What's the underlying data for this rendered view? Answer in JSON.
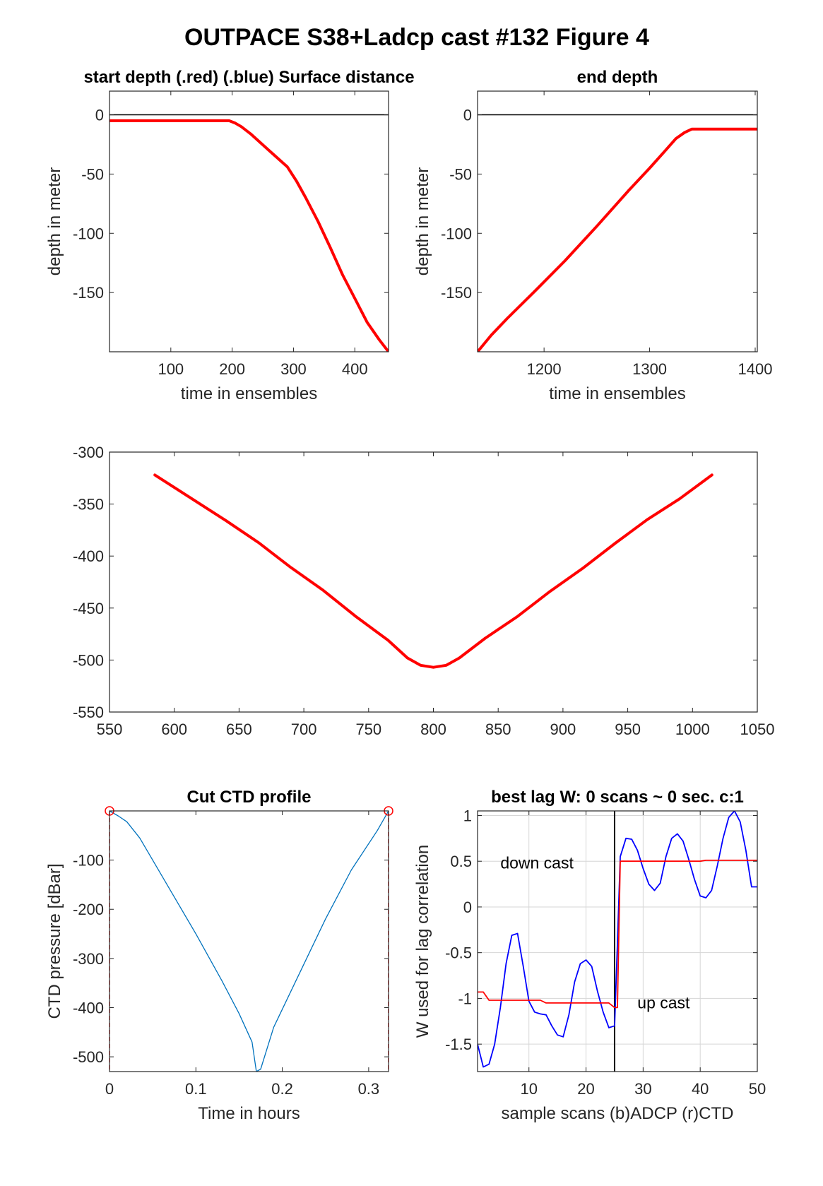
{
  "figure": {
    "title": "OUTPACE S38+Ladcp cast #132   Figure 4"
  },
  "chart_data": [
    {
      "id": "start",
      "type": "line",
      "title": "start depth (.red) (.blue) Surface distance",
      "xlabel": "time in ensembles",
      "ylabel": "depth in meter",
      "xlim": [
        0,
        455
      ],
      "ylim": [
        -200,
        20
      ],
      "xticks": [
        100,
        200,
        300,
        400
      ],
      "yticks": [
        0,
        -50,
        -100,
        -150
      ],
      "hlines": [
        0
      ],
      "grid": false,
      "series": [
        {
          "color": "#ff0000",
          "width": 4,
          "x": [
            0,
            100,
            195,
            205,
            215,
            230,
            260,
            290,
            305,
            320,
            340,
            360,
            380,
            400,
            420,
            440,
            455
          ],
          "y": [
            -5,
            -5,
            -5,
            -7,
            -10,
            -16,
            -30,
            -44,
            -56,
            -70,
            -90,
            -112,
            -135,
            -155,
            -175,
            -190,
            -200
          ]
        }
      ]
    },
    {
      "id": "end",
      "type": "line",
      "title": "end depth",
      "xlabel": "time in ensembles",
      "ylabel": "depth in meter",
      "xlim": [
        1137,
        1402
      ],
      "ylim": [
        -200,
        20
      ],
      "xticks": [
        1200,
        1300,
        1400
      ],
      "yticks": [
        0,
        -50,
        -100,
        -150
      ],
      "hlines": [
        0
      ],
      "grid": false,
      "series": [
        {
          "color": "#ff0000",
          "width": 4,
          "x": [
            1137,
            1150,
            1165,
            1190,
            1220,
            1250,
            1280,
            1300,
            1315,
            1325,
            1333,
            1340,
            1360,
            1402
          ],
          "y": [
            -200,
            -186,
            -172,
            -150,
            -123,
            -94,
            -64,
            -45,
            -30,
            -20,
            -15,
            -12,
            -12,
            -12
          ]
        }
      ]
    },
    {
      "id": "middle",
      "type": "line",
      "title": "",
      "xlabel": "",
      "ylabel": "",
      "xlim": [
        550,
        1050
      ],
      "ylim": [
        -550,
        -300
      ],
      "xticks": [
        550,
        600,
        650,
        700,
        750,
        800,
        850,
        900,
        950,
        1000,
        1050
      ],
      "yticks": [
        -300,
        -350,
        -400,
        -450,
        -500,
        -550
      ],
      "hlines": [],
      "grid": false,
      "series": [
        {
          "color": "#ff0000",
          "width": 4,
          "x": [
            585,
            610,
            640,
            665,
            690,
            715,
            740,
            765,
            780,
            790,
            800,
            810,
            820,
            840,
            865,
            890,
            915,
            940,
            965,
            990,
            1015
          ],
          "y": [
            -322,
            -342,
            -366,
            -387,
            -411,
            -433,
            -458,
            -481,
            -498,
            -505,
            -507,
            -505,
            -498,
            -479,
            -458,
            -434,
            -412,
            -388,
            -365,
            -345,
            -322
          ]
        }
      ]
    },
    {
      "id": "ctd",
      "type": "line",
      "title": "Cut CTD profile",
      "xlabel": "Time in hours",
      "ylabel": "CTD pressure [dBar]",
      "xlim": [
        0,
        0.323
      ],
      "ylim": [
        -530,
        0
      ],
      "xticks": [
        0,
        0.1,
        0.2,
        0.3
      ],
      "xticklabels": [
        "0",
        "0.1",
        "0.2",
        "0.3"
      ],
      "yticks": [
        -100,
        -200,
        -300,
        -400,
        -500
      ],
      "vlines_dashed": [
        0,
        0.323
      ],
      "markers": [
        {
          "x": 0,
          "y": 0
        },
        {
          "x": 0.323,
          "y": 0
        }
      ],
      "grid": false,
      "series": [
        {
          "color": "#0072bd",
          "width": 1.3,
          "x": [
            0,
            0.01,
            0.02,
            0.035,
            0.05,
            0.07,
            0.1,
            0.13,
            0.15,
            0.165,
            0.17,
            0.175,
            0.19,
            0.22,
            0.25,
            0.28,
            0.31,
            0.323
          ],
          "y": [
            0,
            -10,
            -22,
            -55,
            -100,
            -160,
            -250,
            -345,
            -412,
            -470,
            -530,
            -525,
            -440,
            -330,
            -220,
            -120,
            -40,
            0
          ]
        }
      ]
    },
    {
      "id": "lag",
      "type": "line",
      "title": "best lag W: 0 scans ~ 0 sec.  c:1",
      "xlabel": "sample scans (b)ADCP (r)CTD",
      "ylabel": "W used for lag correlation",
      "xlim": [
        1,
        50
      ],
      "ylim": [
        -1.8,
        1.05
      ],
      "xticks": [
        10,
        20,
        30,
        40,
        50
      ],
      "yticks": [
        1,
        0.5,
        0,
        -0.5,
        -1,
        -1.5
      ],
      "yticklabels": [
        "1",
        "0.5",
        "0",
        "-0.5",
        "-1",
        "-1.5"
      ],
      "grid": true,
      "vlines_solid": [
        25
      ],
      "annotations": [
        {
          "text": "down cast",
          "x": 5,
          "y": 0.42
        },
        {
          "text": "up cast",
          "x": 29,
          "y": -1.11
        }
      ],
      "series": [
        {
          "color": "#0000ff",
          "width": 1.8,
          "x": [
            1,
            2,
            3,
            4,
            5,
            6,
            7,
            8,
            9,
            10,
            11,
            12,
            13,
            14,
            15,
            16,
            17,
            18,
            19,
            20,
            21,
            22,
            23,
            24,
            25,
            25.5,
            26,
            27,
            28,
            29,
            30,
            31,
            32,
            33,
            34,
            35,
            36,
            37,
            38,
            39,
            40,
            41,
            42,
            43,
            44,
            45,
            46,
            47,
            48,
            49,
            50
          ],
          "y": [
            -1.5,
            -1.75,
            -1.72,
            -1.5,
            -1.1,
            -0.62,
            -0.31,
            -0.29,
            -0.65,
            -1.03,
            -1.15,
            -1.17,
            -1.18,
            -1.3,
            -1.4,
            -1.42,
            -1.18,
            -0.82,
            -0.62,
            -0.58,
            -0.65,
            -0.92,
            -1.15,
            -1.32,
            -1.3,
            -0.4,
            0.55,
            0.75,
            0.74,
            0.62,
            0.42,
            0.25,
            0.18,
            0.26,
            0.55,
            0.75,
            0.8,
            0.72,
            0.52,
            0.3,
            0.12,
            0.1,
            0.18,
            0.45,
            0.75,
            0.98,
            1.05,
            0.93,
            0.62,
            0.22,
            0.22
          ]
        },
        {
          "color": "#ff0000",
          "width": 1.8,
          "x": [
            1,
            2,
            3,
            4,
            12,
            13,
            24,
            25,
            25.5,
            26,
            40,
            41,
            50
          ],
          "y": [
            -0.93,
            -0.93,
            -1.02,
            -1.02,
            -1.02,
            -1.05,
            -1.05,
            -1.1,
            -1.1,
            0.5,
            0.5,
            0.51,
            0.51
          ]
        }
      ]
    }
  ]
}
